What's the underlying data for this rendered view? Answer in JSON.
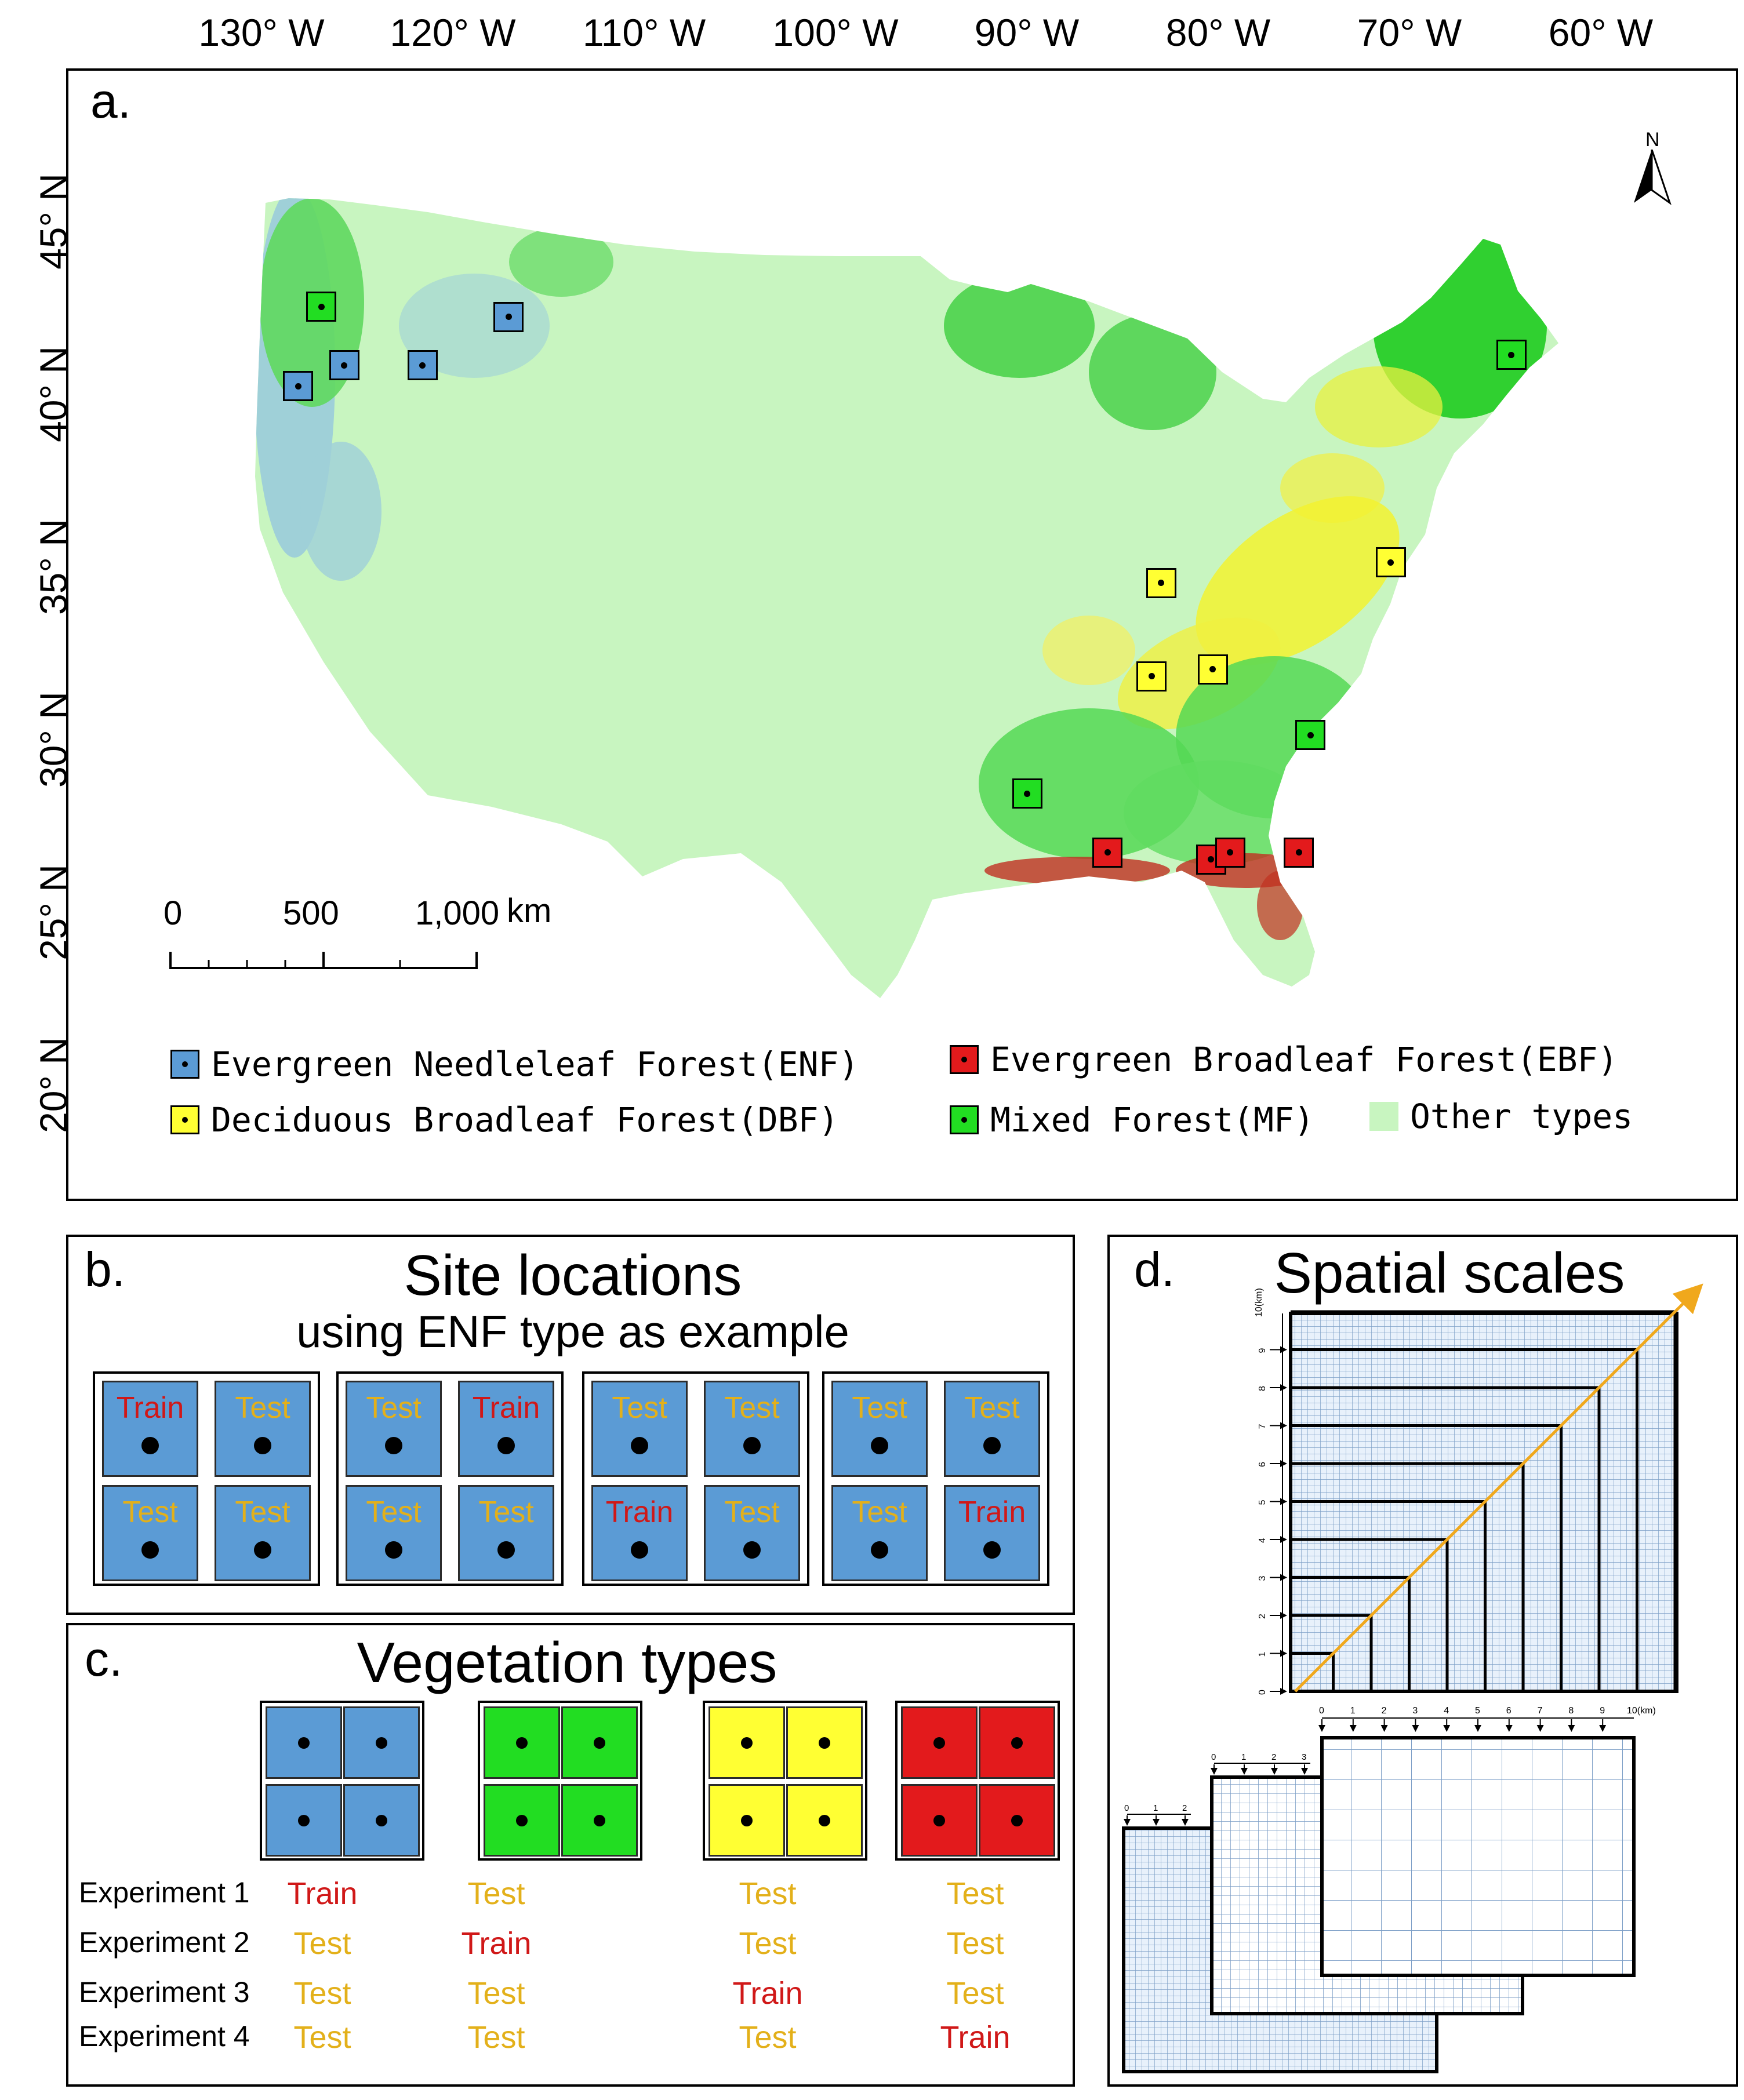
{
  "figure": {
    "longitudes": [
      "130° W",
      "120° W",
      "110° W",
      "100° W",
      "90° W",
      "80° W",
      "70° W",
      "60° W"
    ],
    "latitudes": [
      "45° N",
      "40° N",
      "35° N",
      "30° N",
      "25° N",
      "20° N"
    ],
    "colors": {
      "enf": "#5b9bd5",
      "dbf": "#ffff33",
      "ebf": "#e31a1c",
      "mf": "#22dd22",
      "other": "#c8f5c0",
      "train": "#d01818",
      "test": "#e3b01a",
      "arrow": "#f0a81c"
    }
  },
  "panel_a": {
    "tag": "a.",
    "north": "N",
    "scale": {
      "ticks": [
        "0",
        "500",
        "1,000"
      ],
      "unit": "km"
    },
    "legend": [
      {
        "key": "enf",
        "label": "Evergreen Needleleaf Forest(ENF)"
      },
      {
        "key": "ebf",
        "label": "Evergreen Broadleaf Forest(EBF)"
      },
      {
        "key": "dbf",
        "label": "Deciduous Broadleaf Forest(DBF)"
      },
      {
        "key": "mf",
        "label": "Mixed Forest(MF)"
      },
      {
        "key": "other",
        "label": "Other types"
      }
    ],
    "sites": [
      {
        "type": "mf",
        "lon": -127.0,
        "lat": 42.6
      },
      {
        "type": "enf",
        "lon": -128.2,
        "lat": 40.3
      },
      {
        "type": "enf",
        "lon": -125.8,
        "lat": 40.9
      },
      {
        "type": "enf",
        "lon": -121.7,
        "lat": 40.9
      },
      {
        "type": "enf",
        "lon": -117.2,
        "lat": 42.3
      },
      {
        "type": "mf",
        "lon": -64.8,
        "lat": 41.2
      },
      {
        "type": "dbf",
        "lon": -83.1,
        "lat": 34.6
      },
      {
        "type": "dbf",
        "lon": -71.1,
        "lat": 35.2
      },
      {
        "type": "dbf",
        "lon": -83.6,
        "lat": 31.9
      },
      {
        "type": "dbf",
        "lon": -80.4,
        "lat": 32.1
      },
      {
        "type": "mf",
        "lon": -75.3,
        "lat": 30.2
      },
      {
        "type": "mf",
        "lon": -90.1,
        "lat": 28.5
      },
      {
        "type": "ebf",
        "lon": -85.9,
        "lat": 26.8
      },
      {
        "type": "ebf",
        "lon": -80.5,
        "lat": 26.6
      },
      {
        "type": "ebf",
        "lon": -79.5,
        "lat": 26.8
      },
      {
        "type": "ebf",
        "lon": -75.9,
        "lat": 26.8
      }
    ]
  },
  "panel_b": {
    "tag": "b.",
    "title": "Site locations",
    "subtitle": "using ENF type as example",
    "groups": [
      [
        "Train",
        "Test",
        "Test",
        "Test"
      ],
      [
        "Test",
        "Train",
        "Test",
        "Test"
      ],
      [
        "Test",
        "Test",
        "Train",
        "Test"
      ],
      [
        "Test",
        "Test",
        "Test",
        "Train"
      ]
    ]
  },
  "panel_c": {
    "tag": "c.",
    "title": "Vegetation types",
    "types": [
      "enf",
      "mf",
      "dbf",
      "ebf"
    ],
    "experiments": [
      {
        "label": "Experiment 1",
        "roles": [
          "Train",
          "Test",
          "Test",
          "Test"
        ]
      },
      {
        "label": "Experiment 2",
        "roles": [
          "Test",
          "Train",
          "Test",
          "Test"
        ]
      },
      {
        "label": "Experiment 3",
        "roles": [
          "Test",
          "Test",
          "Train",
          "Test"
        ]
      },
      {
        "label": "Experiment 4",
        "roles": [
          "Test",
          "Test",
          "Test",
          "Train"
        ]
      }
    ]
  },
  "panel_d": {
    "tag": "d.",
    "title": "Spatial scales",
    "axis_unit": "10(km)",
    "axis_ticks": [
      "0",
      "1",
      "2",
      "3",
      "4",
      "5",
      "6",
      "7",
      "8",
      "9"
    ],
    "small_ticks_a": [
      "0",
      "1",
      "2",
      "3"
    ],
    "small_ticks_b": [
      "0",
      "1",
      "2"
    ]
  }
}
